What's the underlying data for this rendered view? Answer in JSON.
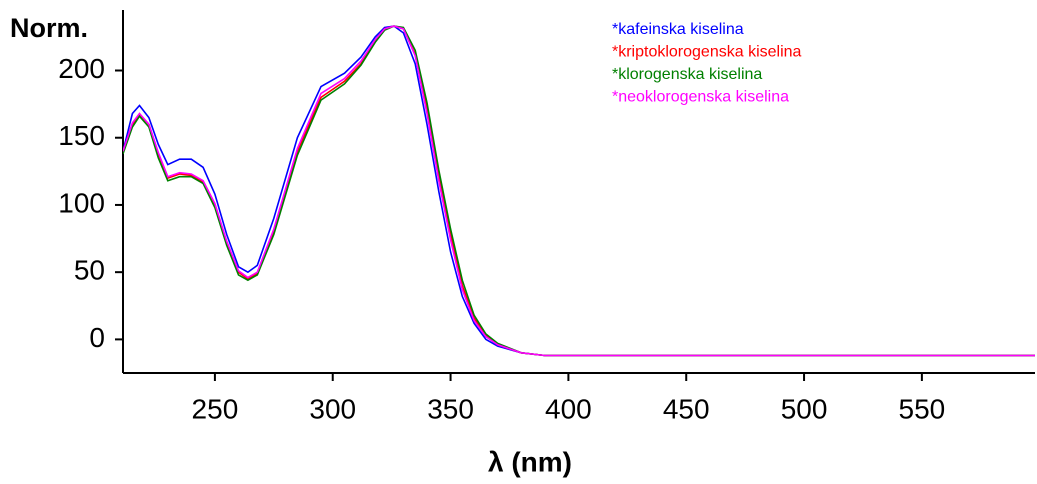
{
  "chart_data": {
    "type": "line",
    "y_label": "Norm.",
    "x_label": "λ (nm)",
    "x": [
      211,
      215,
      218,
      222,
      226,
      230,
      235,
      240,
      245,
      250,
      255,
      260,
      264,
      268,
      275,
      285,
      295,
      305,
      312,
      318,
      322,
      326,
      330,
      335,
      340,
      345,
      350,
      355,
      360,
      365,
      370,
      380,
      390,
      450,
      500,
      550,
      598
    ],
    "series": [
      {
        "name": "*kafeinska kiselina",
        "color": "#0000ff",
        "values": [
          140,
          168,
          174,
          165,
          145,
          130,
          134,
          134,
          128,
          108,
          78,
          54,
          50,
          55,
          90,
          150,
          188,
          198,
          210,
          225,
          232,
          233,
          228,
          205,
          160,
          110,
          65,
          32,
          12,
          0,
          -5,
          -10,
          -12,
          -12,
          -12,
          -12,
          -12
        ]
      },
      {
        "name": "*kriptoklorogenska kiselina",
        "color": "#ff0000",
        "values": [
          140,
          160,
          167,
          160,
          138,
          120,
          123,
          122,
          117,
          100,
          72,
          50,
          45,
          49,
          80,
          140,
          180,
          192,
          205,
          222,
          231,
          233,
          231,
          212,
          172,
          122,
          78,
          40,
          16,
          3,
          -4,
          -10,
          -12,
          -12,
          -12,
          -12,
          -12
        ]
      },
      {
        "name": "*klorogenska kiselina",
        "color": "#008000",
        "values": [
          138,
          158,
          166,
          158,
          135,
          118,
          121,
          121,
          116,
          98,
          70,
          48,
          44,
          48,
          78,
          137,
          178,
          190,
          204,
          221,
          230,
          233,
          232,
          215,
          176,
          126,
          82,
          44,
          18,
          4,
          -3,
          -10,
          -12,
          -12,
          -12,
          -12,
          -12
        ]
      },
      {
        "name": "*neoklorogenska kiselina",
        "color": "#ff00ff",
        "values": [
          140,
          161,
          168,
          160,
          139,
          121,
          124,
          123,
          118,
          101,
          73,
          51,
          46,
          50,
          82,
          142,
          183,
          194,
          207,
          223,
          231,
          233,
          231,
          211,
          168,
          118,
          74,
          37,
          14,
          2,
          -4,
          -10,
          -12,
          -12,
          -12,
          -12,
          -12
        ]
      }
    ],
    "xlim": [
      211,
      598
    ],
    "ylim": [
      -25,
      245
    ],
    "xticks": [
      250,
      300,
      350,
      400,
      450,
      500,
      550
    ],
    "yticks": [
      0,
      50,
      100,
      150,
      200
    ]
  }
}
